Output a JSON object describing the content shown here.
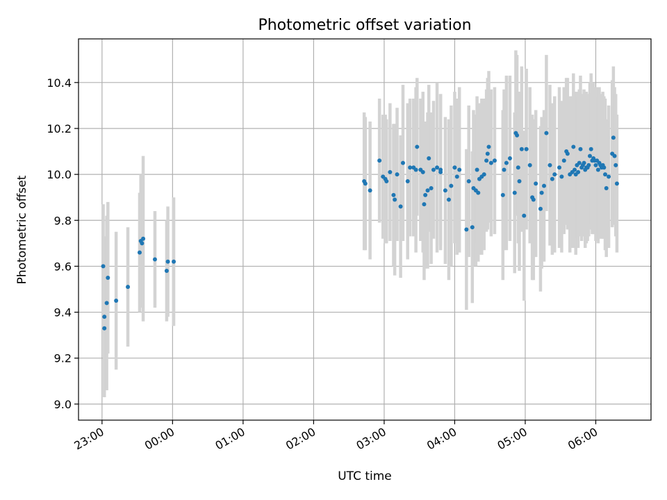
{
  "chart_data": {
    "type": "scatter",
    "title": "Photometric offset variation",
    "xlabel": "UTC time",
    "ylabel": "Photometric offset",
    "x_is_time": true,
    "x_range": [
      "22:40",
      "06:47"
    ],
    "ylim": [
      8.93,
      10.59
    ],
    "x_ticks": [
      "23:00",
      "00:00",
      "01:00",
      "02:00",
      "03:00",
      "04:00",
      "05:00",
      "06:00"
    ],
    "x_tick_labels_rotated": true,
    "y_ticks": [
      9.0,
      9.2,
      9.4,
      9.6,
      9.8,
      10.0,
      10.2,
      10.4
    ],
    "y_tick_labels": [
      "9.0",
      "9.2",
      "9.4",
      "9.6",
      "9.8",
      "10.0",
      "10.2",
      "10.4"
    ],
    "grid": true,
    "colors": {
      "point": "#1f77b4",
      "errorbar": "#d3d3d3",
      "grid": "#b0b0b0"
    },
    "series": [
      {
        "x": [
          "23:01",
          "23:02",
          "23:02",
          "23:04",
          "23:05",
          "23:12",
          "23:22",
          "23:32",
          "23:33",
          "23:34",
          "23:35",
          "23:45",
          "23:55",
          "23:56",
          "00:01",
          "02:43",
          "02:44",
          "02:48",
          "02:56",
          "02:59",
          "03:01",
          "03:02",
          "03:05",
          "03:08",
          "03:09",
          "03:11",
          "03:14",
          "03:16",
          "03:20",
          "03:22",
          "03:25",
          "03:27",
          "03:28",
          "03:31",
          "03:33",
          "03:34",
          "03:35",
          "03:37",
          "03:38",
          "03:40",
          "03:42",
          "03:45",
          "03:48",
          "03:48",
          "03:52",
          "03:55",
          "03:57",
          "04:00",
          "04:02",
          "04:04",
          "04:10",
          "04:12",
          "04:15",
          "04:16",
          "04:18",
          "04:19",
          "04:20",
          "04:21",
          "04:23",
          "04:25",
          "04:27",
          "04:28",
          "04:29",
          "04:31",
          "04:34",
          "04:41",
          "04:42",
          "04:44",
          "04:47",
          "04:51",
          "04:52",
          "04:53",
          "04:54",
          "04:55",
          "04:57",
          "04:59",
          "05:01",
          "05:04",
          "05:06",
          "05:07",
          "05:09",
          "05:13",
          "05:14",
          "05:16",
          "05:18",
          "05:21",
          "05:23",
          "05:25",
          "05:29",
          "05:31",
          "05:33",
          "05:35",
          "05:36",
          "05:38",
          "05:40",
          "05:41",
          "05:42",
          "05:43",
          "05:44",
          "05:45",
          "05:46",
          "05:47",
          "05:48",
          "05:49",
          "05:50",
          "05:51",
          "05:52",
          "05:53",
          "05:54",
          "05:55",
          "05:56",
          "05:57",
          "05:58",
          "05:59",
          "06:00",
          "06:01",
          "06:02",
          "06:03",
          "06:04",
          "06:05",
          "06:06",
          "06:07",
          "06:08",
          "06:09",
          "06:11",
          "06:14",
          "06:15",
          "06:16",
          "06:17",
          "06:18"
        ],
        "y": [
          9.6,
          9.38,
          9.33,
          9.44,
          9.55,
          9.45,
          9.51,
          9.66,
          9.71,
          9.7,
          9.72,
          9.63,
          9.58,
          9.62,
          9.62,
          9.97,
          9.96,
          9.93,
          10.06,
          9.99,
          9.98,
          9.97,
          10.01,
          9.91,
          9.89,
          10.0,
          9.86,
          10.05,
          9.97,
          10.03,
          10.03,
          10.02,
          10.12,
          10.02,
          10.01,
          9.87,
          9.91,
          9.93,
          10.07,
          9.94,
          10.02,
          10.03,
          10.01,
          10.02,
          9.93,
          9.89,
          9.95,
          10.03,
          9.99,
          10.02,
          9.76,
          9.97,
          9.77,
          9.94,
          9.93,
          10.02,
          9.92,
          9.98,
          9.99,
          10.0,
          10.06,
          10.09,
          10.12,
          10.05,
          10.06,
          9.91,
          10.02,
          10.05,
          10.07,
          9.92,
          10.18,
          10.17,
          10.03,
          9.97,
          10.11,
          9.82,
          10.11,
          10.04,
          9.9,
          9.89,
          9.96,
          9.85,
          9.92,
          9.95,
          10.18,
          10.04,
          9.98,
          10.0,
          10.03,
          9.99,
          10.06,
          10.1,
          10.09,
          10.0,
          10.01,
          10.12,
          10.02,
          10.0,
          10.04,
          10.01,
          10.05,
          10.11,
          10.03,
          10.04,
          10.05,
          10.02,
          10.03,
          10.03,
          10.04,
          10.08,
          10.11,
          10.06,
          10.07,
          10.06,
          10.04,
          10.06,
          10.02,
          10.05,
          10.04,
          10.03,
          10.04,
          10.03,
          10.0,
          9.94,
          9.99,
          10.09,
          10.16,
          10.08,
          10.04,
          9.96
        ],
        "err": [
          0.27,
          0.35,
          0.3,
          0.38,
          0.33,
          0.3,
          0.26,
          0.26,
          0.29,
          0.26,
          0.36,
          0.21,
          0.22,
          0.24,
          0.28,
          0.3,
          0.29,
          0.3,
          0.27,
          0.27,
          0.28,
          0.27,
          0.3,
          0.31,
          0.33,
          0.29,
          0.31,
          0.34,
          0.34,
          0.3,
          0.3,
          0.36,
          0.3,
          0.31,
          0.35,
          0.33,
          0.32,
          0.34,
          0.32,
          0.33,
          0.3,
          0.37,
          0.34,
          0.33,
          0.32,
          0.35,
          0.35,
          0.33,
          0.34,
          0.36,
          0.35,
          0.33,
          0.33,
          0.34,
          0.33,
          0.32,
          0.3,
          0.33,
          0.34,
          0.33,
          0.31,
          0.33,
          0.33,
          0.32,
          0.32,
          0.37,
          0.35,
          0.38,
          0.36,
          0.35,
          0.36,
          0.35,
          0.33,
          0.39,
          0.36,
          0.37,
          0.35,
          0.34,
          0.36,
          0.35,
          0.32,
          0.36,
          0.33,
          0.33,
          0.34,
          0.35,
          0.33,
          0.34,
          0.35,
          0.33,
          0.32,
          0.32,
          0.33,
          0.34,
          0.33,
          0.32,
          0.34,
          0.35,
          0.32,
          0.33,
          0.32,
          0.32,
          0.32,
          0.31,
          0.32,
          0.34,
          0.33,
          0.32,
          0.31,
          0.32,
          0.33,
          0.32,
          0.33,
          0.32,
          0.33,
          0.32,
          0.32,
          0.33,
          0.31,
          0.31,
          0.32,
          0.31,
          0.33,
          0.3,
          0.31,
          0.32,
          0.31,
          0.3,
          0.31,
          0.3
        ]
      }
    ]
  }
}
